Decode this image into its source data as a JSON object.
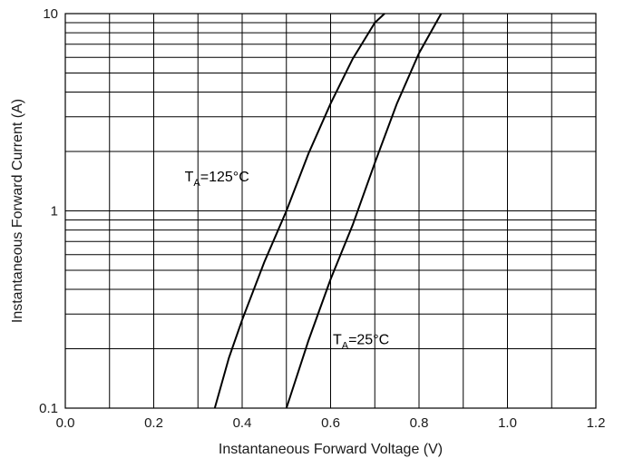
{
  "chart_data": {
    "type": "line",
    "title": "",
    "xlabel": "Instantaneous Forward Voltage (V)",
    "ylabel": "Instantaneous Forward Current (A)",
    "xlim": [
      0.0,
      1.2
    ],
    "ylim": [
      0.1,
      10
    ],
    "y_scale": "log",
    "grid": true,
    "x_ticks": [
      0.0,
      0.2,
      0.4,
      0.6,
      0.8,
      1.0,
      1.2
    ],
    "x_tick_labels": [
      "0.0",
      "0.2",
      "0.4",
      "0.6",
      "0.8",
      "1.0",
      "1.2"
    ],
    "y_ticks": [
      0.1,
      1,
      10
    ],
    "y_tick_labels": [
      "0.1",
      "1",
      "10"
    ],
    "annotations": [
      {
        "series_index": 0,
        "label_base": "T",
        "label_sub": "A",
        "label_rest": "=125°C",
        "anchor": {
          "x": 0.27,
          "y": 1.5
        }
      },
      {
        "series_index": 1,
        "label_base": "T",
        "label_sub": "A",
        "label_rest": "=25°C",
        "anchor": {
          "x": 0.605,
          "y": 0.225
        }
      }
    ],
    "series": [
      {
        "x": [
          0.338,
          0.37,
          0.4,
          0.45,
          0.5,
          0.55,
          0.6,
          0.65,
          0.7,
          0.722
        ],
        "y": [
          0.1,
          0.18,
          0.28,
          0.55,
          1.0,
          1.95,
          3.5,
          5.9,
          9.0,
          10.0
        ]
      },
      {
        "x": [
          0.5,
          0.55,
          0.6,
          0.65,
          0.7,
          0.75,
          0.8,
          0.85
        ],
        "y": [
          0.1,
          0.22,
          0.45,
          0.85,
          1.75,
          3.5,
          6.3,
          10.0
        ]
      }
    ]
  }
}
